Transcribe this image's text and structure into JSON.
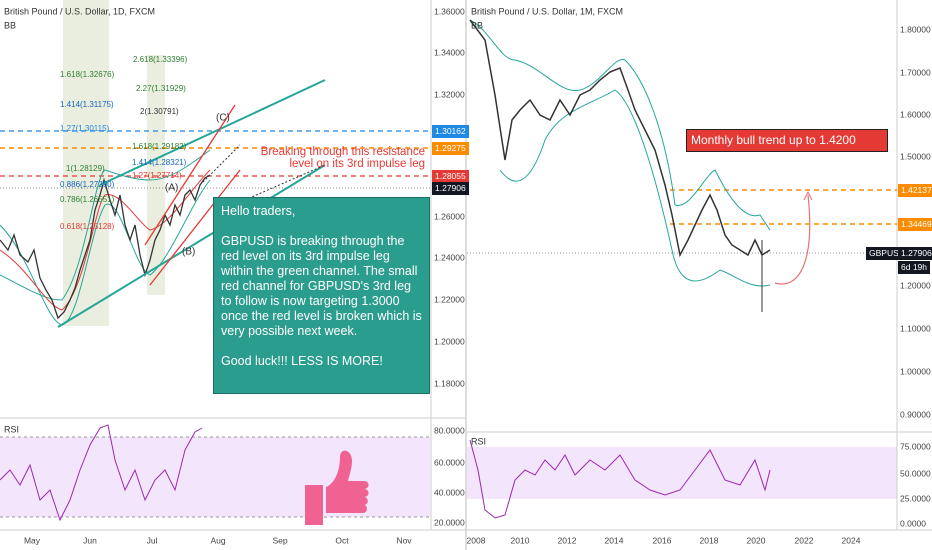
{
  "left": {
    "title": "British Pound / U.S. Dollar, 1D, FXCM",
    "indicator": "BB",
    "yticks": [
      "1.36000",
      "1.34000",
      "1.32000",
      "1.26000",
      "1.24000",
      "1.22000",
      "1.20000",
      "1.18000"
    ],
    "price_tags": [
      "1.30162",
      "1.29275",
      "1.28055",
      "1.27906"
    ],
    "rsi_label": "RSI",
    "rsi_ticks": [
      "80.0000",
      "60.0000",
      "40.0000",
      "20.0000"
    ],
    "xticks": [
      "May",
      "Jun",
      "Jul",
      "Aug",
      "Sep",
      "Oct",
      "Nov"
    ],
    "fib_labels": [
      "1.618(1.32676)",
      "1.414(1.31175)",
      "1.27(1.30115)",
      "1(1.28129)",
      "0.886(1.27290)",
      "0.786(1.26551)",
      "0.618(1.25128)",
      "2.618(1.33396)",
      "2.27(1.31929)",
      "2(1.30791)",
      "1.618(1.29182)",
      "1.414(1.28321)",
      "1.27(1.27714)"
    ],
    "wave_labels": [
      "(A)",
      "(B)",
      "(C)"
    ],
    "resistance_note": [
      "Breaking through this resistance",
      "level on its 3rd impulse leg"
    ],
    "message": [
      "Hello traders,",
      "GBPUSD is breaking through the red level on its 3rd impulse leg within the green channel. The small red channel for GBPUSD's 3rd leg to follow is now targeting 1.3000 once the red level is broken which is very possible next week.",
      "Good luck!!! LESS IS MORE!"
    ]
  },
  "right": {
    "title": "British Pound / U.S. Dollar, 1M, FXCM",
    "indicator": "BB",
    "yticks": [
      "1.80000",
      "1.70000",
      "1.60000",
      "1.50000",
      "1.20000",
      "1.10000",
      "1.00000",
      "0.90000"
    ],
    "price_tags": [
      "1.42137",
      "1.34469",
      "GBPUSD",
      "1.27906",
      "6d 19h"
    ],
    "rsi_label": "RSI",
    "rsi_ticks": [
      "75.0000",
      "50.0000",
      "25.0000",
      "0.0000"
    ],
    "xticks": [
      "2008",
      "2010",
      "2012",
      "2014",
      "2016",
      "2018",
      "2020",
      "2022",
      "2024"
    ],
    "annotation": "Monthly bull trend up to 1.4200"
  }
}
